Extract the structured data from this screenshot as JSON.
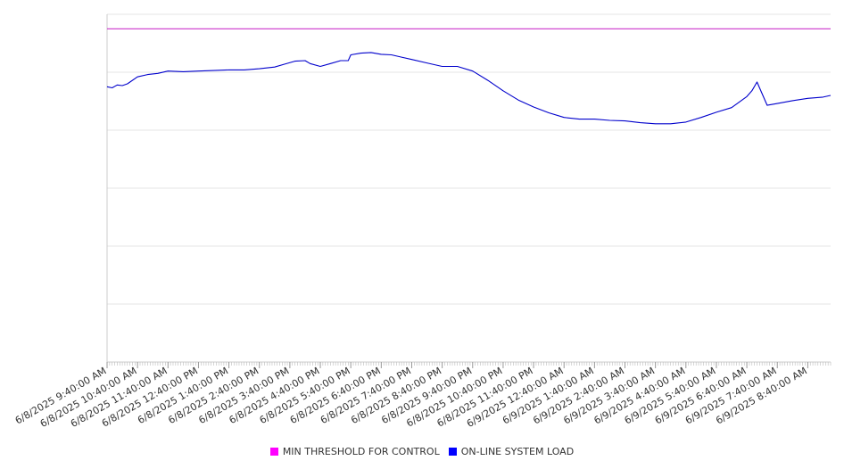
{
  "chart_data": {
    "type": "line",
    "title": "",
    "xlabel": "",
    "ylabel": "",
    "x_tick_labels": [
      "6/8/2025 9:40:00 AM",
      "6/8/2025 10:40:00 AM",
      "6/8/2025 11:40:00 AM",
      "6/8/2025 12:40:00 PM",
      "6/8/2025 1:40:00 PM",
      "6/8/2025 2:40:00 PM",
      "6/8/2025 3:40:00 PM",
      "6/8/2025 4:40:00 PM",
      "6/8/2025 5:40:00 PM",
      "6/8/2025 6:40:00 PM",
      "6/8/2025 7:40:00 PM",
      "6/8/2025 8:40:00 PM",
      "6/8/2025 9:40:00 PM",
      "6/8/2025 10:40:00 PM",
      "6/8/2025 11:40:00 PM",
      "6/9/2025 12:40:00 AM",
      "6/9/2025 1:40:00 AM",
      "6/9/2025 2:40:00 AM",
      "6/9/2025 3:40:00 AM",
      "6/9/2025 4:40:00 AM",
      "6/9/2025 5:40:00 AM",
      "6/9/2025 6:40:00 AM",
      "6/9/2025 7:40:00 AM",
      "6/9/2025 8:40:00 AM"
    ],
    "x_range": [
      "6/8/2025 9:40:00 AM",
      "6/9/2025 9:25:00 AM"
    ],
    "ylim": [
      0,
      6
    ],
    "y_gridlines": [
      0,
      1,
      2,
      3,
      4,
      5,
      6
    ],
    "grid": true,
    "legend_position": "bottom-center",
    "series": [
      {
        "name": "MIN THRESHOLD FOR CONTROL",
        "color": "#cc33cc",
        "x": [
          "6/8/2025 9:40:00 AM",
          "6/9/2025 9:25:00 AM"
        ],
        "values": [
          5.75,
          5.75
        ]
      },
      {
        "name": "ON-LINE SYSTEM LOAD",
        "color": "#0000cc",
        "x": [
          "6/8/2025 9:40:00 AM",
          "6/8/2025 9:50:00 AM",
          "6/8/2025 10:00:00 AM",
          "6/8/2025 10:10:00 AM",
          "6/8/2025 10:20:00 AM",
          "6/8/2025 10:40:00 AM",
          "6/8/2025 11:00:00 AM",
          "6/8/2025 11:20:00 AM",
          "6/8/2025 11:40:00 AM",
          "6/8/2025 12:10:00 PM",
          "6/8/2025 12:40:00 PM",
          "6/8/2025 1:10:00 PM",
          "6/8/2025 1:40:00 PM",
          "6/8/2025 2:10:00 PM",
          "6/8/2025 2:40:00 PM",
          "6/8/2025 3:10:00 PM",
          "6/8/2025 3:30:00 PM",
          "6/8/2025 3:50:00 PM",
          "6/8/2025 4:10:00 PM",
          "6/8/2025 4:20:00 PM",
          "6/8/2025 4:40:00 PM",
          "6/8/2025 5:00:00 PM",
          "6/8/2025 5:20:00 PM",
          "6/8/2025 5:35:00 PM",
          "6/8/2025 5:40:00 PM",
          "6/8/2025 6:00:00 PM",
          "6/8/2025 6:20:00 PM",
          "6/8/2025 6:40:00 PM",
          "6/8/2025 7:00:00 PM",
          "6/8/2025 7:20:00 PM",
          "6/8/2025 7:40:00 PM",
          "6/8/2025 8:10:00 PM",
          "6/8/2025 8:40:00 PM",
          "6/8/2025 9:10:00 PM",
          "6/8/2025 9:40:00 PM",
          "6/8/2025 10:10:00 PM",
          "6/8/2025 10:40:00 PM",
          "6/8/2025 11:10:00 PM",
          "6/8/2025 11:40:00 PM",
          "6/9/2025 12:10:00 AM",
          "6/9/2025 12:40:00 AM",
          "6/9/2025 1:10:00 AM",
          "6/9/2025 1:40:00 AM",
          "6/9/2025 2:10:00 AM",
          "6/9/2025 2:40:00 AM",
          "6/9/2025 3:10:00 AM",
          "6/9/2025 3:40:00 AM",
          "6/9/2025 4:10:00 AM",
          "6/9/2025 4:40:00 AM",
          "6/9/2025 5:10:00 AM",
          "6/9/2025 5:40:00 AM",
          "6/9/2025 6:10:00 AM",
          "6/9/2025 6:40:00 AM",
          "6/9/2025 6:50:00 AM",
          "6/9/2025 7:00:00 AM",
          "6/9/2025 7:20:00 AM",
          "6/9/2025 7:40:00 AM",
          "6/9/2025 8:10:00 AM",
          "6/9/2025 8:40:00 AM",
          "6/9/2025 9:10:00 AM",
          "6/9/2025 9:25:00 AM"
        ],
        "values": [
          4.75,
          4.73,
          4.78,
          4.77,
          4.8,
          4.92,
          4.96,
          4.98,
          5.02,
          5.01,
          5.02,
          5.03,
          5.04,
          5.04,
          5.06,
          5.09,
          5.14,
          5.19,
          5.2,
          5.15,
          5.1,
          5.15,
          5.2,
          5.2,
          5.3,
          5.33,
          5.34,
          5.31,
          5.3,
          5.26,
          5.22,
          5.16,
          5.1,
          5.1,
          5.02,
          4.86,
          4.68,
          4.52,
          4.4,
          4.3,
          4.22,
          4.19,
          4.19,
          4.17,
          4.16,
          4.13,
          4.11,
          4.11,
          4.14,
          4.22,
          4.31,
          4.39,
          4.58,
          4.68,
          4.83,
          4.43,
          4.46,
          4.51,
          4.55,
          4.57,
          4.6
        ]
      }
    ]
  }
}
